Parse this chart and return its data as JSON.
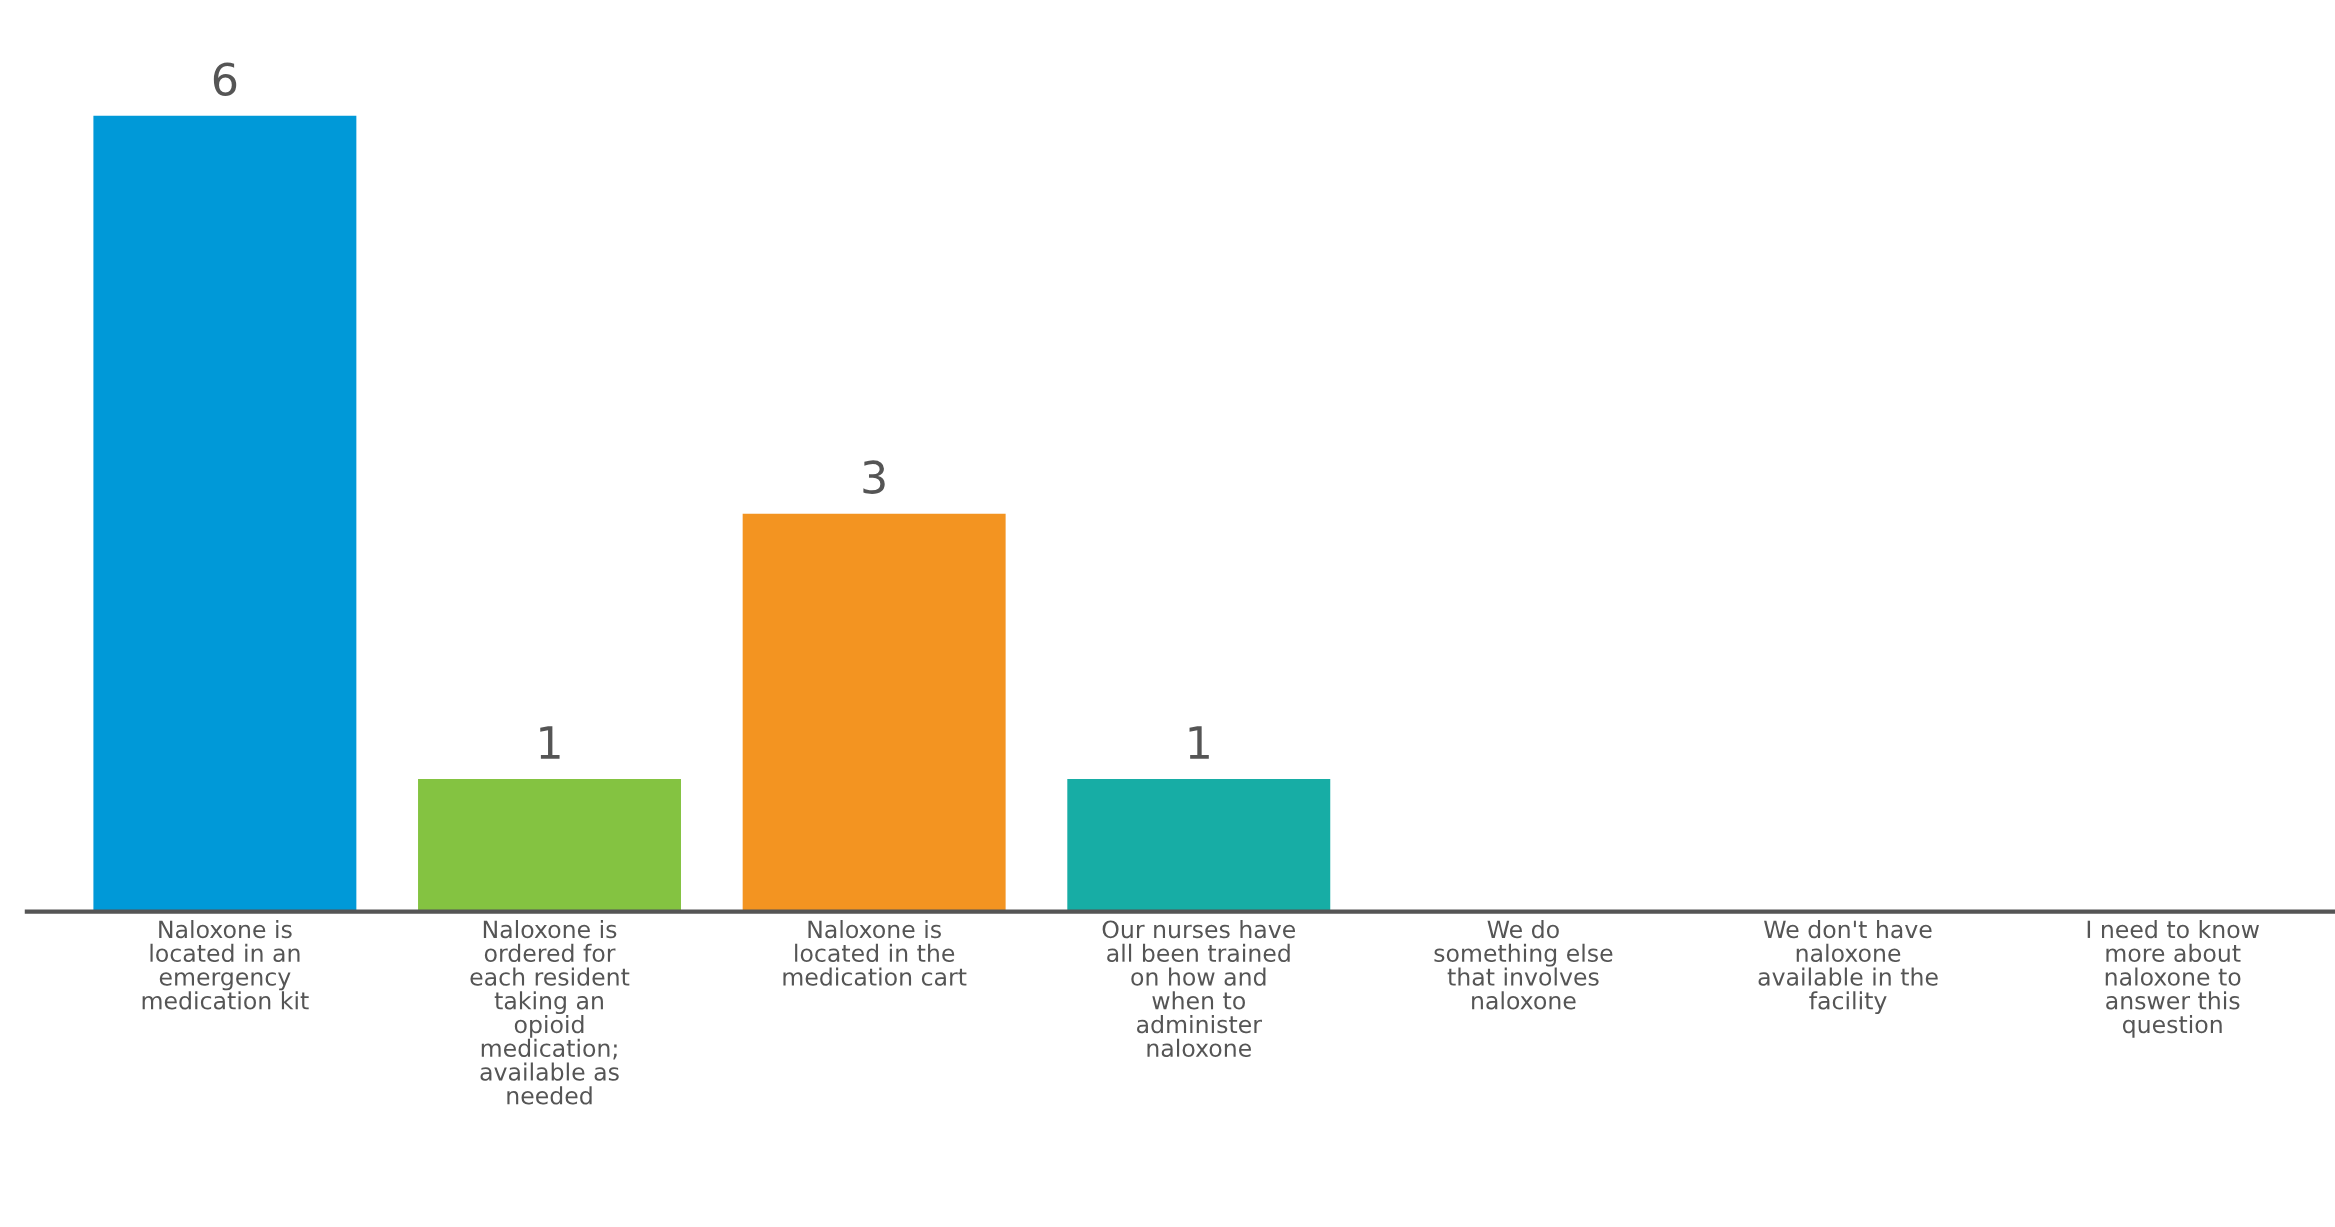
{
  "chart_data": {
    "type": "bar",
    "categories": [
      "Naloxone is\nlocated in an\nemergency\nmedication kit",
      "Naloxone is\nordered for\neach resident\ntaking an\nopioid\nmedication;\navailable as\nneeded",
      "Naloxone is\nlocated in the\nmedication cart",
      "Our nurses have\nall been trained\non how and\nwhen to\nadminister\nnaloxone",
      "We do\nsomething else\nthat involves\nnaloxone",
      "We don't have\nnaloxone\navailable in the\nfacility",
      "I need to know\nmore about\nnaloxone to\nanswer this\nquestion"
    ],
    "values": [
      6,
      1,
      3,
      1,
      0,
      0,
      0
    ],
    "colors": [
      "#0099d8",
      "#84c341",
      "#f39421",
      "#17ada5",
      "#0099d8",
      "#84c341",
      "#f39421"
    ],
    "value_labels": [
      "6",
      "1",
      "3",
      "1",
      null,
      null,
      null
    ],
    "grid": false,
    "legend": false,
    "tick_labels": "x"
  }
}
